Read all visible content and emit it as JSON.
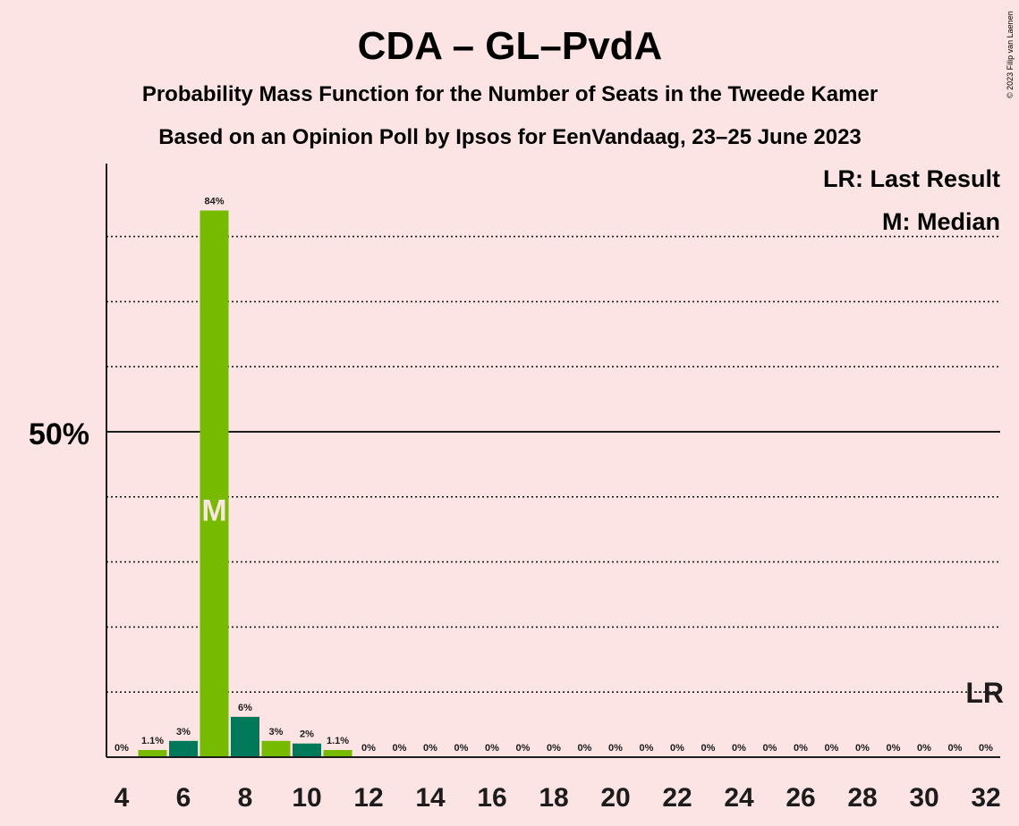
{
  "copyright": "© 2023 Filip van Laenen",
  "chart_data": {
    "type": "bar",
    "title": "CDA – GL–PvdA",
    "subtitle1": "Probability Mass Function for the Number of Seats in the Tweede Kamer",
    "subtitle2": "Based on an Opinion Poll by Ipsos for EenVandaag, 23–25 June 2023",
    "legend_lr": "LR: Last Result",
    "legend_m": "M: Median",
    "y_tick_label": "50%",
    "y_tick_value": 50,
    "ylim": [
      0,
      91
    ],
    "gridlines": [
      10,
      20,
      30,
      40,
      60,
      70,
      80
    ],
    "xlim": [
      4,
      32
    ],
    "x_ticks": [
      "4",
      "6",
      "8",
      "10",
      "12",
      "14",
      "16",
      "18",
      "20",
      "22",
      "24",
      "26",
      "28",
      "30",
      "32"
    ],
    "x_tick_values": [
      4,
      6,
      8,
      10,
      12,
      14,
      16,
      18,
      20,
      22,
      24,
      26,
      28,
      30,
      32
    ],
    "seats": [
      4,
      5,
      6,
      7,
      8,
      9,
      10,
      11,
      12,
      13,
      14,
      15,
      16,
      17,
      18,
      19,
      20,
      21,
      22,
      23,
      24,
      25,
      26,
      27,
      28,
      29,
      30,
      31,
      32
    ],
    "values": [
      0,
      1.1,
      2.5,
      84,
      6.2,
      2.5,
      2.1,
      1.1,
      0,
      0,
      0,
      0,
      0,
      0,
      0,
      0,
      0,
      0,
      0,
      0,
      0,
      0,
      0,
      0,
      0,
      0,
      0,
      0,
      0
    ],
    "labels": [
      "0%",
      "1.1%",
      "3%",
      "84%",
      "6%",
      "3%",
      "2%",
      "1.1%",
      "0%",
      "0%",
      "0%",
      "0%",
      "0%",
      "0%",
      "0%",
      "0%",
      "0%",
      "0%",
      "0%",
      "0%",
      "0%",
      "0%",
      "0%",
      "0%",
      "0%",
      "0%",
      "0%",
      "0%",
      "0%"
    ],
    "median_seat": 7,
    "median_marker": "M",
    "last_result_seat": 32,
    "last_result_value": 10,
    "last_result_marker": "LR",
    "colors": {
      "light": "#76bb00",
      "dark": "#00785a",
      "background": "#fce4e4",
      "text": "#1c1c1c",
      "median": "#fce4e4"
    }
  }
}
